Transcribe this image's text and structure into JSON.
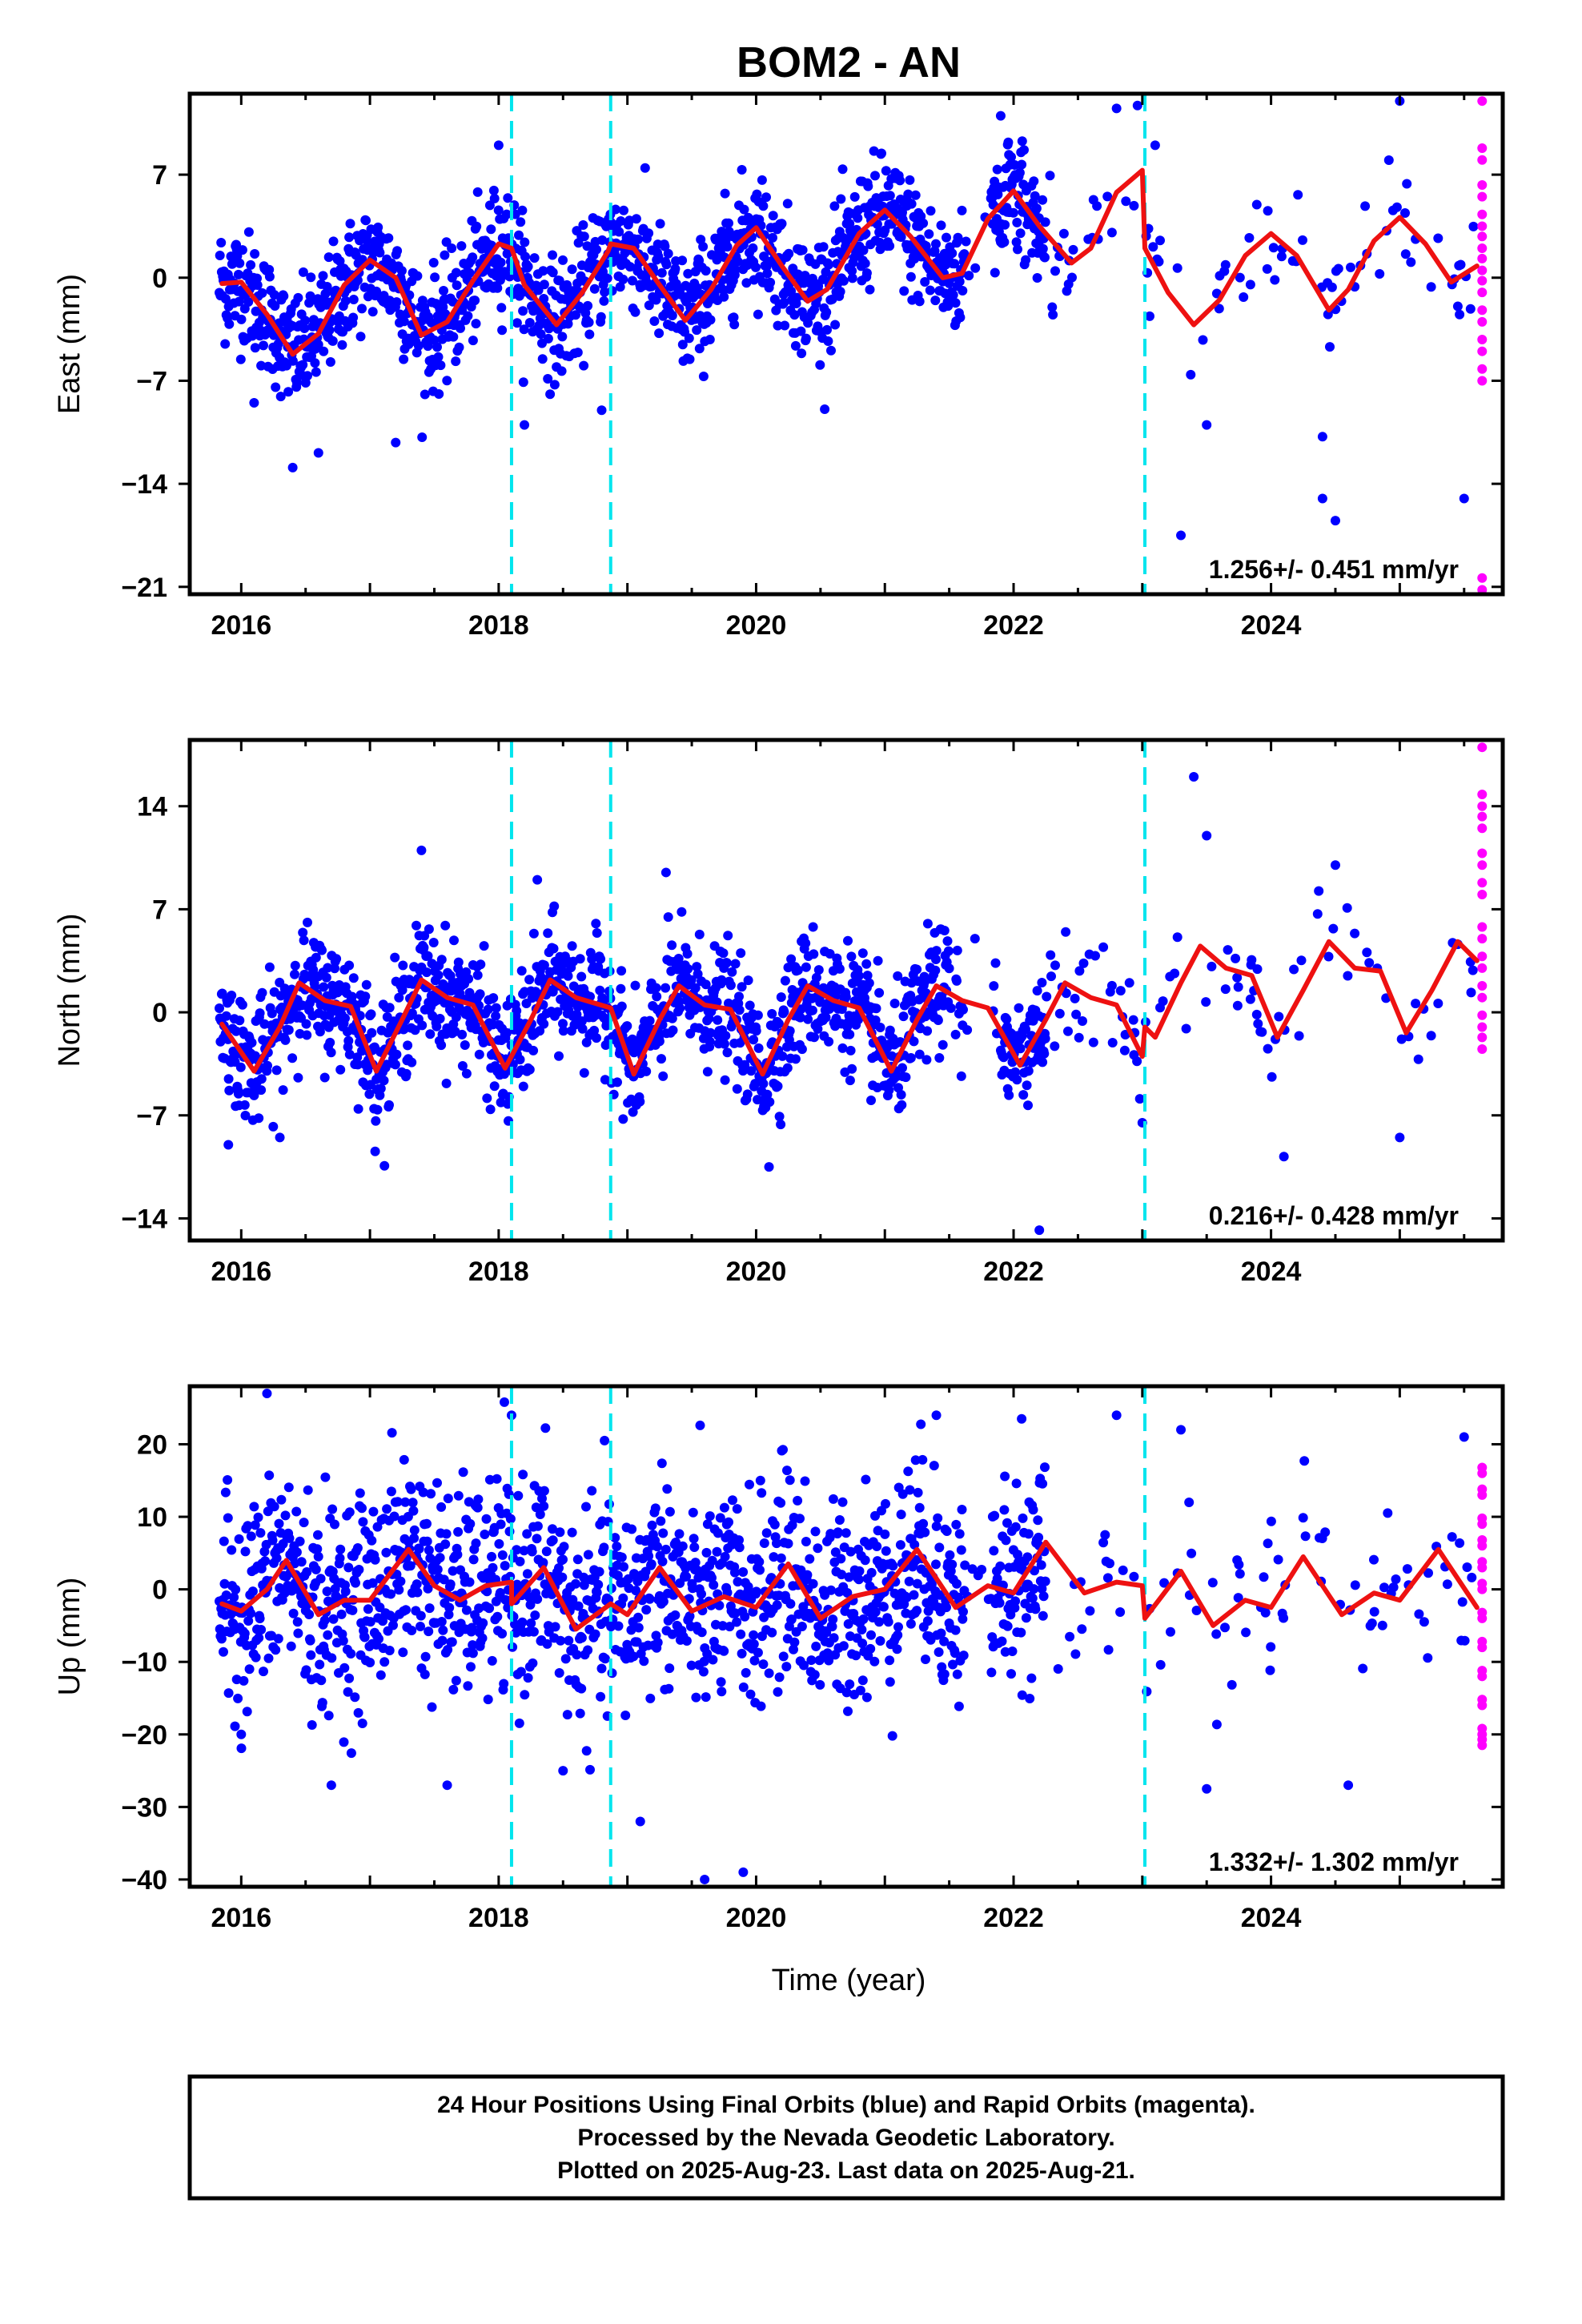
{
  "title": "BOM2 - AN",
  "xlabel": "Time (year)",
  "colors": {
    "final": "#0000ff",
    "rapid": "#ff00ff",
    "fit": "#ee1111",
    "event": "#00e5ee"
  },
  "footer": {
    "lines": [
      "24 Hour Positions Using Final Orbits (blue) and Rapid Orbits (magenta).",
      "Processed by the Nevada Geodetic Laboratory.",
      "Plotted on 2025-Aug-23. Last data on 2025-Aug-21."
    ]
  },
  "chart_data": [
    {
      "type": "scatter",
      "ylabel": "East (mm)",
      "rate": "1.256+/- 0.451 mm/yr",
      "xlim": [
        2015.6,
        2025.8
      ],
      "ylim": [
        -21.5,
        12.5
      ],
      "xticks": [
        2016,
        2018,
        2020,
        2022,
        2024
      ],
      "yticks": [
        -21,
        -14,
        -7,
        0,
        7
      ],
      "events": [
        2018.1,
        2018.87,
        2023.02
      ],
      "seasonal": {
        "amp": 2.6,
        "phase": -0.1,
        "offset": 0.0
      },
      "fit": [
        [
          2015.85,
          -0.4
        ],
        [
          2016.0,
          -0.3
        ],
        [
          2016.2,
          -2.5
        ],
        [
          2016.4,
          -5.2
        ],
        [
          2016.6,
          -3.8
        ],
        [
          2016.8,
          -0.5
        ],
        [
          2017.0,
          1.2
        ],
        [
          2017.2,
          0.0
        ],
        [
          2017.4,
          -3.9
        ],
        [
          2017.6,
          -3.0
        ],
        [
          2017.8,
          -0.2
        ],
        [
          2018.0,
          2.3
        ],
        [
          2018.1,
          2.0
        ],
        [
          2018.2,
          -0.5
        ],
        [
          2018.45,
          -3.2
        ],
        [
          2018.65,
          -1.0
        ],
        [
          2018.85,
          1.8
        ],
        [
          2018.87,
          2.3
        ],
        [
          2019.05,
          2.0
        ],
        [
          2019.25,
          -0.5
        ],
        [
          2019.45,
          -2.9
        ],
        [
          2019.65,
          -0.8
        ],
        [
          2019.85,
          2.2
        ],
        [
          2020.0,
          3.4
        ],
        [
          2020.2,
          0.8
        ],
        [
          2020.4,
          -1.6
        ],
        [
          2020.55,
          -0.8
        ],
        [
          2020.8,
          3.0
        ],
        [
          2021.0,
          4.6
        ],
        [
          2021.2,
          2.8
        ],
        [
          2021.45,
          0.0
        ],
        [
          2021.6,
          0.3
        ],
        [
          2021.8,
          4.0
        ],
        [
          2022.0,
          5.9
        ],
        [
          2022.2,
          3.5
        ],
        [
          2022.45,
          1.0
        ],
        [
          2022.6,
          2.0
        ],
        [
          2022.8,
          5.8
        ],
        [
          2023.0,
          7.3
        ],
        [
          2023.02,
          2.0
        ],
        [
          2023.2,
          -1.0
        ],
        [
          2023.4,
          -3.2
        ],
        [
          2023.6,
          -1.5
        ],
        [
          2023.8,
          1.5
        ],
        [
          2024.0,
          3.0
        ],
        [
          2024.2,
          1.5
        ],
        [
          2024.45,
          -2.2
        ],
        [
          2024.6,
          -0.8
        ],
        [
          2024.8,
          2.5
        ],
        [
          2025.0,
          4.1
        ],
        [
          2025.2,
          2.3
        ],
        [
          2025.4,
          -0.3
        ],
        [
          2025.6,
          0.8
        ]
      ],
      "outliers": [
        [
          2016.1,
          -8.5
        ],
        [
          2016.4,
          -12.9
        ],
        [
          2016.6,
          -11.9
        ],
        [
          2017.2,
          -11.2
        ],
        [
          2018.0,
          9.0
        ],
        [
          2018.2,
          -10.0
        ],
        [
          2018.8,
          -9.0
        ],
        [
          2021.9,
          11.0
        ],
        [
          2022.8,
          11.5
        ],
        [
          2023.3,
          -17.5
        ],
        [
          2023.5,
          -10.0
        ],
        [
          2024.4,
          -15.0
        ],
        [
          2024.5,
          -16.5
        ],
        [
          2024.4,
          -10.8
        ],
        [
          2025.0,
          12.0
        ],
        [
          2025.5,
          -15.0
        ],
        [
          2023.1,
          9.0
        ],
        [
          2022.3,
          -2.0
        ]
      ],
      "rapid": [
        [
          2025.64,
          12.0
        ],
        [
          2025.64,
          8.0
        ],
        [
          2025.64,
          5.5
        ],
        [
          2025.64,
          3.5
        ],
        [
          2025.64,
          2.0
        ],
        [
          2025.64,
          0.5
        ],
        [
          2025.64,
          -1.0
        ],
        [
          2025.64,
          -3.0
        ],
        [
          2025.64,
          -5.0
        ],
        [
          2025.64,
          -7.0
        ],
        [
          2025.64,
          -21.2
        ]
      ]
    },
    {
      "type": "scatter",
      "ylabel": "North (mm)",
      "rate": "0.216+/- 0.428 mm/yr",
      "xlim": [
        2015.6,
        2025.8
      ],
      "ylim": [
        -15.5,
        18.5
      ],
      "xticks": [
        2016,
        2018,
        2020,
        2022,
        2024
      ],
      "yticks": [
        -14,
        -7,
        0,
        7,
        14
      ],
      "events": [
        2018.1,
        2018.87,
        2023.02
      ],
      "seasonal": {
        "amp": 2.8,
        "phase": 0.2,
        "offset": -0.8
      },
      "fit": [
        [
          2015.85,
          -0.8
        ],
        [
          2016.1,
          -4.0
        ],
        [
          2016.3,
          -1.0
        ],
        [
          2016.45,
          2.0
        ],
        [
          2016.65,
          0.8
        ],
        [
          2016.85,
          0.4
        ],
        [
          2017.05,
          -4.0
        ],
        [
          2017.25,
          -0.5
        ],
        [
          2017.4,
          2.2
        ],
        [
          2017.6,
          1.0
        ],
        [
          2017.8,
          0.5
        ],
        [
          2018.05,
          -3.8
        ],
        [
          2018.25,
          -0.5
        ],
        [
          2018.4,
          2.2
        ],
        [
          2018.6,
          1.0
        ],
        [
          2018.87,
          0.3
        ],
        [
          2019.05,
          -4.2
        ],
        [
          2019.25,
          -0.5
        ],
        [
          2019.4,
          1.8
        ],
        [
          2019.6,
          0.5
        ],
        [
          2019.8,
          0.2
        ],
        [
          2020.05,
          -4.2
        ],
        [
          2020.25,
          -0.5
        ],
        [
          2020.4,
          1.8
        ],
        [
          2020.6,
          0.8
        ],
        [
          2020.8,
          0.3
        ],
        [
          2021.05,
          -4.0
        ],
        [
          2021.25,
          -0.5
        ],
        [
          2021.4,
          1.8
        ],
        [
          2021.6,
          0.8
        ],
        [
          2021.8,
          0.3
        ],
        [
          2022.05,
          -3.6
        ],
        [
          2022.25,
          -0.5
        ],
        [
          2022.4,
          2.0
        ],
        [
          2022.6,
          1.0
        ],
        [
          2022.8,
          0.5
        ],
        [
          2023.0,
          -3.0
        ],
        [
          2023.02,
          -1.0
        ],
        [
          2023.1,
          -1.7
        ],
        [
          2023.3,
          2.0
        ],
        [
          2023.45,
          4.5
        ],
        [
          2023.65,
          3.0
        ],
        [
          2023.85,
          2.5
        ],
        [
          2024.05,
          -1.7
        ],
        [
          2024.25,
          1.5
        ],
        [
          2024.45,
          4.8
        ],
        [
          2024.65,
          3.0
        ],
        [
          2024.85,
          2.8
        ],
        [
          2025.05,
          -1.4
        ],
        [
          2025.25,
          1.5
        ],
        [
          2025.45,
          4.8
        ],
        [
          2025.6,
          3.5
        ]
      ],
      "outliers": [
        [
          2015.9,
          -9.0
        ],
        [
          2016.3,
          -8.5
        ],
        [
          2017.4,
          11.0
        ],
        [
          2018.3,
          9.0
        ],
        [
          2019.3,
          9.5
        ],
        [
          2020.1,
          -10.5
        ],
        [
          2022.2,
          -14.8
        ],
        [
          2023.4,
          16.0
        ],
        [
          2023.5,
          12.0
        ],
        [
          2024.1,
          -9.8
        ],
        [
          2024.5,
          10.0
        ],
        [
          2025.0,
          -8.5
        ],
        [
          2023.0,
          -7.5
        ],
        [
          2021.7,
          5.0
        ],
        [
          2022.9,
          2.0
        ]
      ],
      "rapid": [
        [
          2025.64,
          18.0
        ],
        [
          2025.64,
          14.0
        ],
        [
          2025.64,
          12.5
        ],
        [
          2025.64,
          10.0
        ],
        [
          2025.64,
          8.0
        ],
        [
          2025.64,
          5.0
        ],
        [
          2025.64,
          3.0
        ],
        [
          2025.64,
          1.0
        ],
        [
          2025.64,
          -1.0
        ],
        [
          2025.64,
          -2.5
        ]
      ]
    },
    {
      "type": "scatter",
      "ylabel": "Up (mm)",
      "rate": "1.332+/- 1.302 mm/yr",
      "xlim": [
        2015.6,
        2025.8
      ],
      "ylim": [
        -41,
        28
      ],
      "xticks": [
        2016,
        2018,
        2020,
        2022,
        2024
      ],
      "yticks": [
        -40,
        -30,
        -20,
        -10,
        0,
        10,
        20
      ],
      "events": [
        2018.1,
        2018.87,
        2023.02
      ],
      "seasonal": {
        "amp": 4.0,
        "phase": 0.4,
        "offset": -0.5
      },
      "fit": [
        [
          2015.85,
          -2.0
        ],
        [
          2016.0,
          -3.0
        ],
        [
          2016.2,
          0.0
        ],
        [
          2016.35,
          4.0
        ],
        [
          2016.6,
          -3.5
        ],
        [
          2016.8,
          -1.5
        ],
        [
          2017.0,
          -1.5
        ],
        [
          2017.3,
          5.5
        ],
        [
          2017.5,
          0.5
        ],
        [
          2017.7,
          -1.5
        ],
        [
          2017.9,
          0.5
        ],
        [
          2018.1,
          1.0
        ],
        [
          2018.1,
          -2.0
        ],
        [
          2018.35,
          3.0
        ],
        [
          2018.6,
          -5.5
        ],
        [
          2018.87,
          -2.0
        ],
        [
          2019.0,
          -3.5
        ],
        [
          2019.25,
          3.0
        ],
        [
          2019.5,
          -3.0
        ],
        [
          2019.75,
          -1.0
        ],
        [
          2020.0,
          -2.5
        ],
        [
          2020.25,
          3.5
        ],
        [
          2020.5,
          -4.0
        ],
        [
          2020.75,
          -1.0
        ],
        [
          2021.0,
          0.0
        ],
        [
          2021.25,
          5.5
        ],
        [
          2021.55,
          -2.5
        ],
        [
          2021.8,
          0.5
        ],
        [
          2022.0,
          -0.5
        ],
        [
          2022.25,
          6.5
        ],
        [
          2022.55,
          -0.5
        ],
        [
          2022.8,
          1.0
        ],
        [
          2023.0,
          0.5
        ],
        [
          2023.02,
          -4.0
        ],
        [
          2023.3,
          2.5
        ],
        [
          2023.55,
          -5.0
        ],
        [
          2023.8,
          -1.5
        ],
        [
          2024.0,
          -2.5
        ],
        [
          2024.25,
          4.5
        ],
        [
          2024.55,
          -3.5
        ],
        [
          2024.8,
          -0.5
        ],
        [
          2025.0,
          -1.5
        ],
        [
          2025.3,
          5.5
        ],
        [
          2025.6,
          -2.5
        ]
      ],
      "outliers": [
        [
          2016.2,
          27.0
        ],
        [
          2016.0,
          -20.0
        ],
        [
          2016.7,
          -27.0
        ],
        [
          2017.6,
          -27.0
        ],
        [
          2018.5,
          -25.0
        ],
        [
          2019.1,
          -32.0
        ],
        [
          2019.6,
          -40.0
        ],
        [
          2019.9,
          -39.0
        ],
        [
          2023.5,
          -27.5
        ],
        [
          2024.6,
          -27.0
        ],
        [
          2022.8,
          24.0
        ],
        [
          2021.4,
          24.0
        ],
        [
          2025.5,
          21.0
        ],
        [
          2018.1,
          24.0
        ],
        [
          2023.3,
          22.0
        ]
      ],
      "rapid": [
        [
          2025.64,
          16.0
        ],
        [
          2025.64,
          13.0
        ],
        [
          2025.64,
          9.0
        ],
        [
          2025.64,
          6.0
        ],
        [
          2025.64,
          3.0
        ],
        [
          2025.64,
          0.0
        ],
        [
          2025.64,
          -4.0
        ],
        [
          2025.64,
          -8.0
        ],
        [
          2025.64,
          -12.0
        ],
        [
          2025.64,
          -16.0
        ],
        [
          2025.64,
          -20.0
        ],
        [
          2025.64,
          -21.5
        ]
      ]
    }
  ]
}
